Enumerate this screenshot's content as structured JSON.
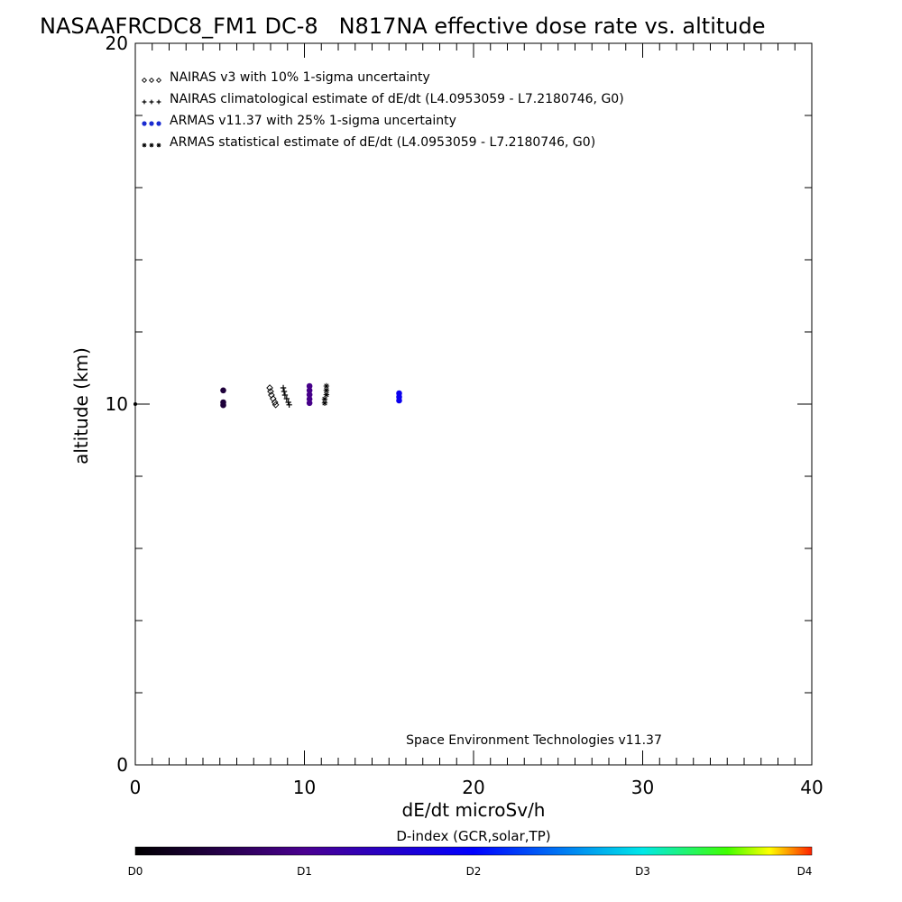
{
  "chart_data": {
    "type": "scatter",
    "title": "NASAAFRCDC8_FM1 DC-8   N817NA effective dose rate vs. altitude",
    "xlabel": "dE/dt microSv/h",
    "ylabel": "altitude (km)",
    "xlim": [
      0,
      40
    ],
    "ylim": [
      0,
      20
    ],
    "x_ticks": [
      "0",
      "10",
      "20",
      "30",
      "40"
    ],
    "y_ticks": [
      "0",
      "10",
      "20"
    ],
    "grid": false,
    "legend_position": "top-left",
    "credit": "Space Environment Technologies v11.37",
    "legend": [
      {
        "marker": "diamond",
        "label": "NAIRAS v3 with 10% 1-sigma uncertainty"
      },
      {
        "marker": "plus",
        "label": "NAIRAS climatological estimate of dE/dt (L4.0953059 - L7.2180746, G0)"
      },
      {
        "marker": "dot",
        "label": "ARMAS v11.37 with 25% 1-sigma uncertainty"
      },
      {
        "marker": "asterisk",
        "label": "ARMAS statistical estimate of dE/dt (L4.0953059 - L7.2180746, G0)"
      }
    ],
    "series": [
      {
        "marker": "diamond",
        "points": [
          {
            "x": 7.95,
            "y": 10.45
          },
          {
            "x": 8.0,
            "y": 10.35
          },
          {
            "x": 8.05,
            "y": 10.25
          },
          {
            "x": 8.15,
            "y": 10.15
          },
          {
            "x": 8.25,
            "y": 10.05
          },
          {
            "x": 8.3,
            "y": 9.98
          }
        ]
      },
      {
        "marker": "plus",
        "points": [
          {
            "x": 8.75,
            "y": 10.45
          },
          {
            "x": 8.8,
            "y": 10.35
          },
          {
            "x": 8.85,
            "y": 10.25
          },
          {
            "x": 8.95,
            "y": 10.15
          },
          {
            "x": 9.05,
            "y": 10.05
          },
          {
            "x": 9.1,
            "y": 9.98
          }
        ]
      },
      {
        "marker": "dot",
        "points": [
          {
            "x": 5.2,
            "y": 10.38,
            "d": 0.4
          },
          {
            "x": 5.2,
            "y": 10.05,
            "d": 0.4
          },
          {
            "x": 5.2,
            "y": 9.97,
            "d": 0.4
          },
          {
            "x": 10.3,
            "y": 10.5,
            "d": 0.95
          },
          {
            "x": 10.3,
            "y": 10.38,
            "d": 0.95
          },
          {
            "x": 10.3,
            "y": 10.26,
            "d": 0.95
          },
          {
            "x": 10.3,
            "y": 10.14,
            "d": 0.95
          },
          {
            "x": 10.3,
            "y": 10.03,
            "d": 0.95
          },
          {
            "x": 15.6,
            "y": 10.3,
            "d": 1.85
          },
          {
            "x": 15.6,
            "y": 10.2,
            "d": 1.85
          },
          {
            "x": 15.6,
            "y": 10.1,
            "d": 1.85
          }
        ]
      },
      {
        "marker": "asterisk",
        "points": [
          {
            "x": 11.3,
            "y": 10.5
          },
          {
            "x": 11.3,
            "y": 10.38
          },
          {
            "x": 11.3,
            "y": 10.26
          },
          {
            "x": 11.2,
            "y": 10.14
          },
          {
            "x": 11.2,
            "y": 10.03
          }
        ]
      }
    ],
    "colorbar": {
      "label": "D-index (GCR,solar,TP)",
      "ticks": [
        {
          "label": "D0",
          "d": 0
        },
        {
          "label": "D1",
          "d": 1
        },
        {
          "label": "D2",
          "d": 2
        },
        {
          "label": "D3",
          "d": 3
        },
        {
          "label": "D4",
          "d": 4
        }
      ],
      "stops": [
        {
          "d": 0,
          "color": "#000000"
        },
        {
          "d": 1,
          "color": "#4a0090"
        },
        {
          "d": 2,
          "color": "#0000ff"
        },
        {
          "d": 3,
          "color": "#00e8e8"
        },
        {
          "d": 3.5,
          "color": "#40ff00"
        },
        {
          "d": 3.75,
          "color": "#ffff00"
        },
        {
          "d": 4,
          "color": "#ff2000"
        }
      ]
    }
  }
}
